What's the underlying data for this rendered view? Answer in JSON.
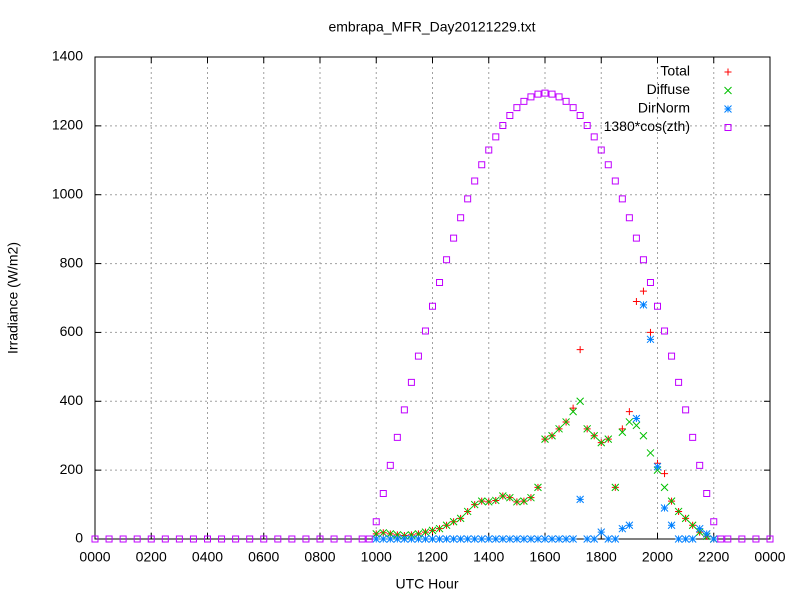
{
  "chart_data": {
    "type": "scatter",
    "title": "embrapa_MFR_Day20121229.txt",
    "x_label": "UTC Hour",
    "y_label": "Irradiance (W/m2)",
    "xlim": [
      0,
      24
    ],
    "ylim": [
      0,
      1400
    ],
    "xticks": [
      {
        "value": 0,
        "label": "0000"
      },
      {
        "value": 2,
        "label": "0200"
      },
      {
        "value": 4,
        "label": "0400"
      },
      {
        "value": 6,
        "label": "0600"
      },
      {
        "value": 8,
        "label": "0800"
      },
      {
        "value": 10,
        "label": "1000"
      },
      {
        "value": 12,
        "label": "1200"
      },
      {
        "value": 14,
        "label": "1400"
      },
      {
        "value": 16,
        "label": "1600"
      },
      {
        "value": 18,
        "label": "1800"
      },
      {
        "value": 20,
        "label": "2000"
      },
      {
        "value": 22,
        "label": "2200"
      },
      {
        "value": 24,
        "label": "0000"
      }
    ],
    "yticks": [
      0,
      200,
      400,
      600,
      800,
      1000,
      1200,
      1400
    ],
    "grid": true,
    "legend": "top-right",
    "series": [
      {
        "name": "Total",
        "color": "#ff0000",
        "marker": "plus",
        "x": [
          10,
          10.25,
          10.5,
          10.75,
          11,
          11.25,
          11.5,
          11.75,
          12,
          12.25,
          12.5,
          12.75,
          13,
          13.25,
          13.5,
          13.75,
          14,
          14.25,
          14.5,
          14.75,
          15,
          15.25,
          15.5,
          15.75,
          16,
          16.25,
          16.5,
          16.75,
          17,
          17.25,
          17.5,
          17.75,
          18,
          18.25,
          18.5,
          18.75,
          19,
          19.25,
          19.5,
          19.75,
          20,
          20.25,
          20.5,
          20.75,
          21,
          21.25,
          21.5,
          21.75,
          22
        ],
        "values": [
          15,
          18,
          15,
          12,
          10,
          12,
          15,
          20,
          25,
          30,
          40,
          50,
          60,
          80,
          100,
          110,
          108,
          112,
          125,
          120,
          108,
          110,
          120,
          150,
          290,
          300,
          320,
          340,
          380,
          550,
          320,
          300,
          280,
          290,
          150,
          320,
          370,
          690,
          720,
          600,
          220,
          190,
          110,
          80,
          60,
          40,
          20,
          8,
          0
        ]
      },
      {
        "name": "Diffuse",
        "color": "#00c000",
        "marker": "cross",
        "x": [
          10,
          10.25,
          10.5,
          10.75,
          11,
          11.25,
          11.5,
          11.75,
          12,
          12.25,
          12.5,
          12.75,
          13,
          13.25,
          13.5,
          13.75,
          14,
          14.25,
          14.5,
          14.75,
          15,
          15.25,
          15.5,
          15.75,
          16,
          16.25,
          16.5,
          16.75,
          17,
          17.25,
          17.5,
          17.75,
          18,
          18.25,
          18.5,
          18.75,
          19,
          19.25,
          19.5,
          19.75,
          20,
          20.25,
          20.5,
          20.75,
          21,
          21.25,
          21.5,
          21.75,
          22
        ],
        "values": [
          15,
          18,
          15,
          12,
          10,
          12,
          15,
          20,
          25,
          30,
          40,
          50,
          60,
          80,
          100,
          110,
          108,
          112,
          125,
          120,
          108,
          110,
          120,
          150,
          290,
          300,
          320,
          340,
          370,
          400,
          320,
          300,
          280,
          290,
          150,
          310,
          340,
          330,
          300,
          250,
          200,
          150,
          110,
          80,
          60,
          40,
          20,
          8,
          0
        ]
      },
      {
        "name": "DirNorm",
        "color": "#0080ff",
        "marker": "star",
        "x": [
          10,
          10.25,
          10.5,
          10.75,
          11,
          11.25,
          11.5,
          11.75,
          12,
          12.25,
          12.5,
          12.75,
          13,
          13.25,
          13.5,
          13.75,
          14,
          14.25,
          14.5,
          14.75,
          15,
          15.25,
          15.5,
          15.75,
          16,
          16.25,
          16.5,
          16.75,
          17,
          17.25,
          17.5,
          17.75,
          18,
          18.25,
          18.5,
          18.75,
          19,
          19.25,
          19.5,
          19.75,
          20,
          20.25,
          20.5,
          20.75,
          21,
          21.25,
          21.5,
          21.75,
          22
        ],
        "values": [
          0,
          0,
          0,
          0,
          0,
          0,
          0,
          0,
          0,
          0,
          0,
          0,
          0,
          0,
          0,
          0,
          0,
          0,
          0,
          0,
          0,
          0,
          0,
          0,
          0,
          0,
          0,
          0,
          0,
          115,
          0,
          0,
          20,
          0,
          0,
          30,
          40,
          350,
          680,
          580,
          210,
          90,
          40,
          0,
          0,
          0,
          30,
          15,
          0
        ]
      },
      {
        "name": "1380*cos(zth)",
        "color": "#c000ff",
        "marker": "square",
        "x": [
          0,
          0.5,
          1,
          1.5,
          2,
          2.5,
          3,
          3.5,
          4,
          4.5,
          5,
          5.5,
          6,
          6.5,
          7,
          7.5,
          8,
          8.5,
          9,
          9.5,
          9.75,
          10,
          10.25,
          10.5,
          10.75,
          11,
          11.25,
          11.5,
          11.75,
          12,
          12.25,
          12.5,
          12.75,
          13,
          13.25,
          13.5,
          13.75,
          14,
          14.25,
          14.5,
          14.75,
          15,
          15.25,
          15.5,
          15.75,
          16,
          16.25,
          16.5,
          16.75,
          17,
          17.25,
          17.5,
          17.75,
          18,
          18.25,
          18.5,
          18.75,
          19,
          19.25,
          19.5,
          19.75,
          20,
          20.25,
          20.5,
          20.75,
          21,
          21.25,
          21.5,
          21.75,
          22,
          22.25,
          22.5,
          23,
          23.5,
          24
        ],
        "values": [
          0,
          0,
          0,
          0,
          0,
          0,
          0,
          0,
          0,
          0,
          0,
          0,
          0,
          0,
          0,
          0,
          0,
          0,
          0,
          0,
          0,
          50,
          132,
          214,
          295,
          375,
          455,
          531,
          604,
          676,
          745,
          811,
          874,
          933,
          988,
          1040,
          1087,
          1130,
          1168,
          1201,
          1230,
          1253,
          1271,
          1284,
          1292,
          1295,
          1292,
          1284,
          1271,
          1253,
          1230,
          1201,
          1168,
          1130,
          1087,
          1040,
          988,
          933,
          874,
          811,
          745,
          676,
          604,
          531,
          455,
          375,
          295,
          214,
          132,
          50,
          0,
          0,
          0,
          0,
          0
        ]
      }
    ]
  }
}
